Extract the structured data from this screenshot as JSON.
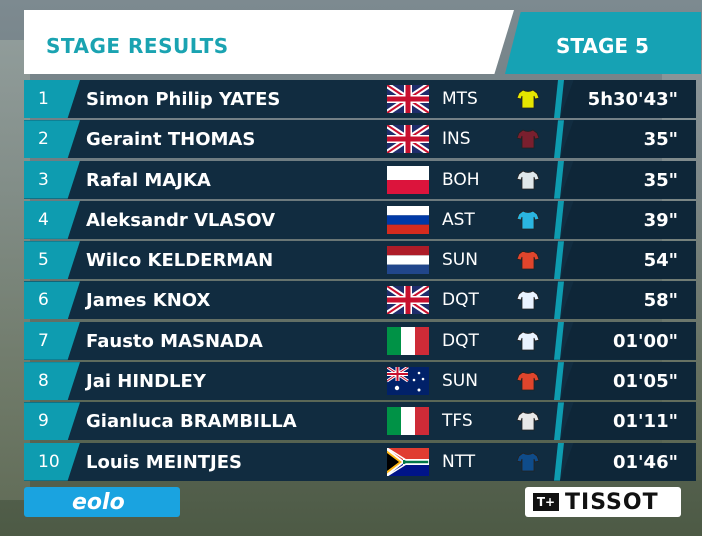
{
  "header": {
    "title": "STAGE RESULTS",
    "stage": "STAGE 5"
  },
  "results": [
    {
      "pos": "1",
      "name": "Simon Philip YATES",
      "flag": "gb",
      "team": "MTS",
      "jersey": "jersey-icon-mts",
      "time": "5h30'43\""
    },
    {
      "pos": "2",
      "name": "Geraint THOMAS",
      "flag": "gb",
      "team": "INS",
      "jersey": "jersey-icon-ins",
      "time": "35\""
    },
    {
      "pos": "3",
      "name": "Rafal MAJKA",
      "flag": "pl",
      "team": "BOH",
      "jersey": "jersey-icon-boh",
      "time": "35\""
    },
    {
      "pos": "4",
      "name": "Aleksandr VLASOV",
      "flag": "ru",
      "team": "AST",
      "jersey": "jersey-icon-ast",
      "time": "39\""
    },
    {
      "pos": "5",
      "name": "Wilco KELDERMAN",
      "flag": "nl",
      "team": "SUN",
      "jersey": "jersey-icon-sun",
      "time": "54\""
    },
    {
      "pos": "6",
      "name": "James KNOX",
      "flag": "gb",
      "team": "DQT",
      "jersey": "jersey-icon-dqt",
      "time": "58\""
    },
    {
      "pos": "7",
      "name": "Fausto MASNADA",
      "flag": "it",
      "team": "DQT",
      "jersey": "jersey-icon-dqt",
      "time": "01'00\""
    },
    {
      "pos": "8",
      "name": "Jai HINDLEY",
      "flag": "au",
      "team": "SUN",
      "jersey": "jersey-icon-sun",
      "time": "01'05\""
    },
    {
      "pos": "9",
      "name": "Gianluca BRAMBILLA",
      "flag": "it",
      "team": "TFS",
      "jersey": "jersey-icon-tfs",
      "time": "01'11\""
    },
    {
      "pos": "10",
      "name": "Louis MEINTJES",
      "flag": "za",
      "team": "NTT",
      "jersey": "jersey-icon-ntt",
      "time": "01'46\""
    }
  ],
  "sponsors": {
    "left": "eolo",
    "right_mark": "T+",
    "right": "TISSOT"
  },
  "colors": {
    "accent": "#16a2b4",
    "row_bg": "#112c40",
    "jersey_mts": "#e6e600",
    "jersey_ins": "#7a1f2e",
    "jersey_boh": "#dfe7ea",
    "jersey_ast": "#2ab5e0",
    "jersey_sun": "#e0452c",
    "jersey_dqt": "#eaf3ff",
    "jersey_tfs": "#e8e8e8",
    "jersey_ntt": "#0f4c8a"
  }
}
